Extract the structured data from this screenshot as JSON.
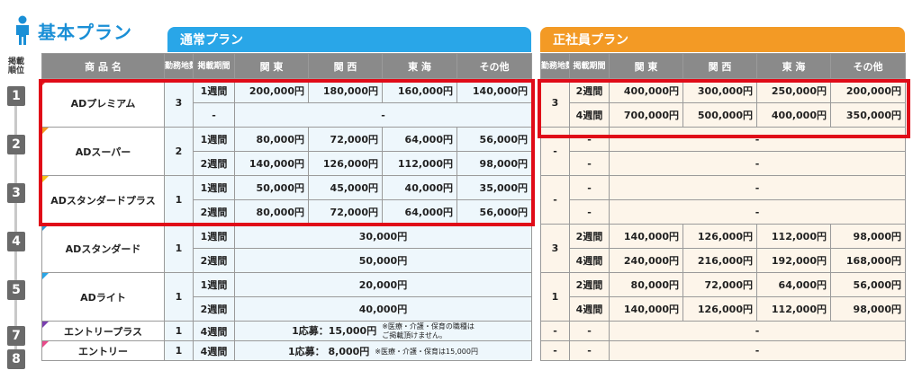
{
  "title": "基本プラン",
  "plans": {
    "regular": "通常プラン",
    "fulltime": "正社員プラン"
  },
  "rank_header": "掲載順位",
  "left_headers": {
    "product": "商 品 名",
    "work_locations": "勤務地数",
    "period": "掲載期間",
    "kanto": "関 東",
    "kansai": "関 西",
    "tokai": "東 海",
    "other": "その他"
  },
  "right_headers": {
    "work_locations": "勤務地数",
    "period": "掲載期間",
    "kanto": "関 東",
    "kansai": "関 西",
    "tokai": "東 海",
    "other": "その他"
  },
  "ranks": [
    "1",
    "2",
    "3",
    "4",
    "5",
    "7",
    "8"
  ],
  "products": [
    {
      "name": "ADプレミアム",
      "locations": "3",
      "rows": [
        {
          "period": "1週間",
          "prices": [
            "200,000円",
            "180,000円",
            "160,000円",
            "140,000円"
          ]
        },
        {
          "period": "-",
          "merged": "-"
        }
      ]
    },
    {
      "name": "ADスーパー",
      "locations": "2",
      "rows": [
        {
          "period": "1週間",
          "prices": [
            "80,000円",
            "72,000円",
            "64,000円",
            "56,000円"
          ]
        },
        {
          "period": "2週間",
          "prices": [
            "140,000円",
            "126,000円",
            "112,000円",
            "98,000円"
          ]
        }
      ]
    },
    {
      "name": "ADスタンダードプラス",
      "locations": "1",
      "rows": [
        {
          "period": "1週間",
          "prices": [
            "50,000円",
            "45,000円",
            "40,000円",
            "35,000円"
          ]
        },
        {
          "period": "2週間",
          "prices": [
            "80,000円",
            "72,000円",
            "64,000円",
            "56,000円"
          ]
        }
      ]
    },
    {
      "name": "ADスタンダード",
      "locations": "1",
      "rows": [
        {
          "period": "1週間",
          "merged": "30,000円"
        },
        {
          "period": "2週間",
          "merged": "50,000円"
        }
      ]
    },
    {
      "name": "ADライト",
      "locations": "1",
      "rows": [
        {
          "period": "1週間",
          "merged": "20,000円"
        },
        {
          "period": "2週間",
          "merged": "40,000円"
        }
      ]
    },
    {
      "name": "エントリープラス",
      "locations": "1",
      "rows": [
        {
          "period": "4週間",
          "merged": "1応募：15,000円",
          "note": "※医療・介護・保育の職種は\nご掲載頂けません。"
        }
      ]
    },
    {
      "name": "エントリー",
      "locations": "1",
      "rows": [
        {
          "period": "4週間",
          "merged": "1応募：  8,000円",
          "note": "※医療・介護・保育は15,000円"
        }
      ]
    }
  ],
  "fulltime": [
    {
      "locations": "3",
      "rows": [
        {
          "period": "2週間",
          "prices": [
            "400,000円",
            "300,000円",
            "250,000円",
            "200,000円"
          ]
        },
        {
          "period": "4週間",
          "prices": [
            "700,000円",
            "500,000円",
            "400,000円",
            "350,000円"
          ]
        }
      ]
    },
    {
      "locations": "-",
      "rows": [
        {
          "period": "-",
          "merged": "-"
        },
        {
          "period": "-",
          "merged": "-"
        }
      ]
    },
    {
      "locations": "-",
      "rows": [
        {
          "period": "-",
          "merged": "-"
        },
        {
          "period": "-",
          "merged": "-"
        }
      ]
    },
    {
      "locations": "3",
      "rows": [
        {
          "period": "2週間",
          "prices": [
            "140,000円",
            "126,000円",
            "112,000円",
            "98,000円"
          ]
        },
        {
          "period": "4週間",
          "prices": [
            "240,000円",
            "216,000円",
            "192,000円",
            "168,000円"
          ]
        }
      ]
    },
    {
      "locations": "1",
      "rows": [
        {
          "period": "2週間",
          "prices": [
            "80,000円",
            "72,000円",
            "64,000円",
            "56,000円"
          ]
        },
        {
          "period": "4週間",
          "prices": [
            "140,000円",
            "126,000円",
            "112,000円",
            "98,000円"
          ]
        }
      ]
    },
    {
      "locations": "-",
      "rows": [
        {
          "period": "-",
          "merged": "-"
        }
      ]
    },
    {
      "locations": "-",
      "rows": [
        {
          "period": "-",
          "merged": "-"
        }
      ]
    }
  ],
  "colors": {
    "blue": "#29a6e8",
    "orange": "#f39a25",
    "highlight": "#e00b18",
    "tab_colors": [
      "#e8322c",
      "#f39a25",
      "#f6c21a",
      "#2f9ad8",
      "#29a6e8",
      "#7a3fb0",
      "#e84b8a"
    ]
  }
}
